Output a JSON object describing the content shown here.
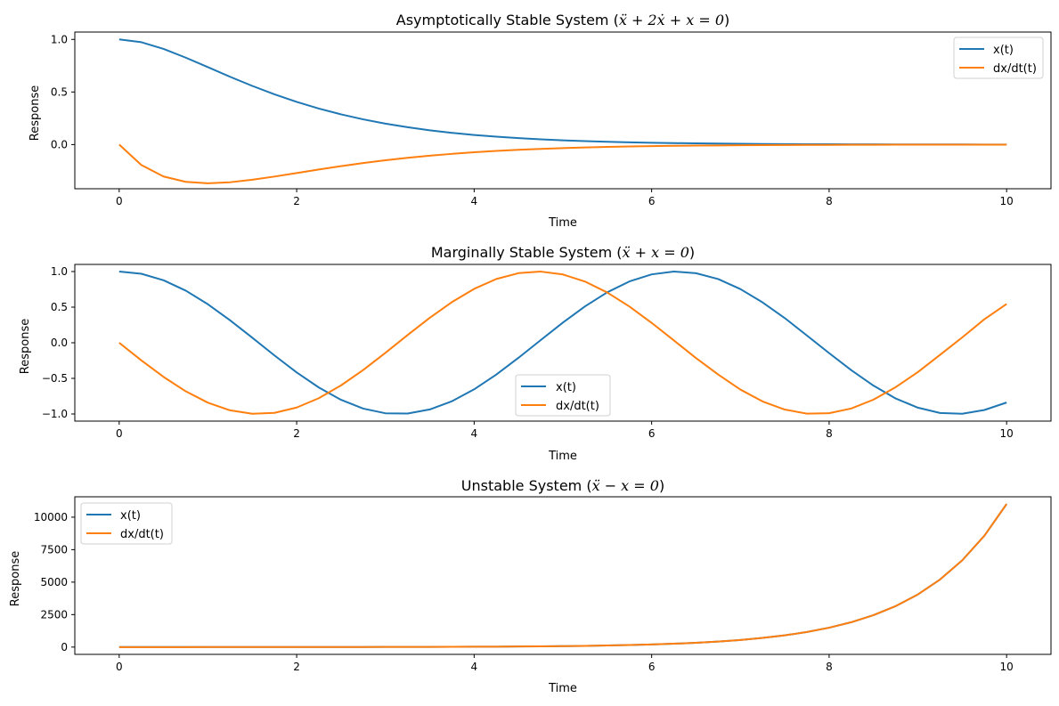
{
  "colors": {
    "series_1": "#1f77b4",
    "series_2": "#ff7f0e",
    "axis": "#000000"
  },
  "chart_data": [
    {
      "type": "line",
      "title_prefix": "Asymptotically Stable System (",
      "title_math": "ẍ + 2ẋ + x = 0",
      "title_suffix": ")",
      "xlabel": "Time",
      "ylabel": "Response",
      "xlim": [
        -0.5,
        10.5
      ],
      "ylim": [
        -0.42,
        1.07
      ],
      "xticks": [
        0,
        2,
        4,
        6,
        8,
        10
      ],
      "xtick_labels": [
        "0",
        "2",
        "4",
        "6",
        "8",
        "10"
      ],
      "yticks": [
        -0.0,
        0.5,
        1.0
      ],
      "ytick_labels": [
        "0.0",
        "0.5",
        "1.0"
      ],
      "legend_position": "upper right",
      "x": [
        0.0,
        0.25,
        0.5,
        0.75,
        1.0,
        1.25,
        1.5,
        1.75,
        2.0,
        2.25,
        2.5,
        2.75,
        3.0,
        3.25,
        3.5,
        3.75,
        4.0,
        4.25,
        4.5,
        4.75,
        5.0,
        5.25,
        5.5,
        5.75,
        6.0,
        6.25,
        6.5,
        6.75,
        7.0,
        7.25,
        7.5,
        7.75,
        8.0,
        8.25,
        8.5,
        8.75,
        9.0,
        9.25,
        9.5,
        9.75,
        10.0
      ],
      "series": [
        {
          "name": "x(t)",
          "color": "#1f77b4",
          "values": [
            1.0,
            0.9735,
            0.9098,
            0.8266,
            0.7358,
            0.6446,
            0.5578,
            0.4779,
            0.406,
            0.3425,
            0.2873,
            0.2397,
            0.1991,
            0.1648,
            0.1359,
            0.1117,
            0.0916,
            0.0749,
            0.0611,
            0.0498,
            0.0404,
            0.0328,
            0.0266,
            0.0215,
            0.0174,
            0.014,
            0.0113,
            0.0091,
            0.0073,
            0.0059,
            0.0047,
            0.0038,
            0.003,
            0.0024,
            0.002,
            0.0016,
            0.0012,
            0.001,
            0.0008,
            0.0006,
            0.0005
          ]
        },
        {
          "name": "dx/dt(t)",
          "color": "#ff7f0e",
          "values": [
            0.0,
            -0.1947,
            -0.3033,
            -0.3543,
            -0.3679,
            -0.3581,
            -0.3347,
            -0.3041,
            -0.2707,
            -0.2371,
            -0.2052,
            -0.1756,
            -0.1494,
            -0.126,
            -0.1057,
            -0.0882,
            -0.0733,
            -0.0607,
            -0.05,
            -0.0411,
            -0.0337,
            -0.0276,
            -0.0225,
            -0.0183,
            -0.0149,
            -0.012,
            -0.0098,
            -0.0079,
            -0.0064,
            -0.0051,
            -0.0041,
            -0.0033,
            -0.0027,
            -0.0022,
            -0.0017,
            -0.0014,
            -0.0011,
            -0.0009,
            -0.0007,
            -0.0006,
            -0.0005
          ]
        }
      ]
    },
    {
      "type": "line",
      "title_prefix": "Marginally Stable System (",
      "title_math": "ẍ + x = 0",
      "title_suffix": ")",
      "xlabel": "Time",
      "ylabel": "Response",
      "xlim": [
        -0.5,
        10.5
      ],
      "ylim": [
        -1.1,
        1.1
      ],
      "xticks": [
        0,
        2,
        4,
        6,
        8,
        10
      ],
      "xtick_labels": [
        "0",
        "2",
        "4",
        "6",
        "8",
        "10"
      ],
      "yticks": [
        -1.0,
        -0.5,
        0.0,
        0.5,
        1.0
      ],
      "ytick_labels": [
        "−1.0",
        "−0.5",
        "0.0",
        "0.5",
        "1.0"
      ],
      "legend_position": "lower center",
      "x": [
        0.0,
        0.25,
        0.5,
        0.75,
        1.0,
        1.25,
        1.5,
        1.75,
        2.0,
        2.25,
        2.5,
        2.75,
        3.0,
        3.25,
        3.5,
        3.75,
        4.0,
        4.25,
        4.5,
        4.75,
        5.0,
        5.25,
        5.5,
        5.75,
        6.0,
        6.25,
        6.5,
        6.75,
        7.0,
        7.25,
        7.5,
        7.75,
        8.0,
        8.25,
        8.5,
        8.75,
        9.0,
        9.25,
        9.5,
        9.75,
        10.0
      ],
      "series": [
        {
          "name": "x(t)",
          "color": "#1f77b4",
          "values": [
            1.0,
            0.9689,
            0.8776,
            0.7317,
            0.5403,
            0.3153,
            0.0707,
            -0.1782,
            -0.4161,
            -0.6282,
            -0.8011,
            -0.9243,
            -0.99,
            -0.9941,
            -0.9365,
            -0.8206,
            -0.6536,
            -0.446,
            -0.2108,
            0.0376,
            0.2837,
            0.5117,
            0.7087,
            0.8612,
            0.9602,
            0.9998,
            0.9766,
            0.8949,
            0.7539,
            0.5668,
            0.3466,
            0.1016,
            -0.1455,
            -0.3853,
            -0.602,
            -0.7822,
            -0.9111,
            -0.9856,
            -0.9972,
            -0.9438,
            -0.8391
          ]
        },
        {
          "name": "dx/dt(t)",
          "color": "#ff7f0e",
          "values": [
            0.0,
            -0.2474,
            -0.4794,
            -0.6816,
            -0.8415,
            -0.949,
            -0.9975,
            -0.984,
            -0.9093,
            -0.7781,
            -0.5985,
            -0.3817,
            -0.1411,
            0.1082,
            0.3508,
            0.5716,
            0.7568,
            0.8952,
            0.9775,
            0.9993,
            0.9589,
            0.8591,
            0.7055,
            0.5083,
            0.2794,
            0.0332,
            -0.2151,
            -0.4461,
            -0.657,
            -0.8239,
            -0.938,
            -0.9948,
            -0.9894,
            -0.9228,
            -0.7985,
            -0.6231,
            -0.4121,
            -0.1691,
            0.0752,
            0.3305,
            0.544
          ]
        }
      ]
    },
    {
      "type": "line",
      "title_prefix": "Unstable System (",
      "title_math": "ẍ − x = 0",
      "title_suffix": ")",
      "xlabel": "Time",
      "ylabel": "Response",
      "xlim": [
        -0.5,
        10.5
      ],
      "ylim": [
        -560,
        11570
      ],
      "xticks": [
        0,
        2,
        4,
        6,
        8,
        10
      ],
      "xtick_labels": [
        "0",
        "2",
        "4",
        "6",
        "8",
        "10"
      ],
      "yticks": [
        0,
        2500,
        5000,
        7500,
        10000
      ],
      "ytick_labels": [
        "0",
        "2500",
        "5000",
        "7500",
        "10000"
      ],
      "legend_position": "upper left",
      "x": [
        0.0,
        0.25,
        0.5,
        0.75,
        1.0,
        1.25,
        1.5,
        1.75,
        2.0,
        2.25,
        2.5,
        2.75,
        3.0,
        3.25,
        3.5,
        3.75,
        4.0,
        4.25,
        4.5,
        4.75,
        5.0,
        5.25,
        5.5,
        5.75,
        6.0,
        6.25,
        6.5,
        6.75,
        7.0,
        7.25,
        7.5,
        7.75,
        8.0,
        8.25,
        8.5,
        8.75,
        9.0,
        9.25,
        9.5,
        9.75,
        10.0
      ],
      "series": [
        {
          "name": "x(t)",
          "color": "#1f77b4",
          "values": [
            1.0,
            1.03,
            1.13,
            1.29,
            1.54,
            1.89,
            2.35,
            2.96,
            3.76,
            4.8,
            6.13,
            7.85,
            10.07,
            12.92,
            16.57,
            21.27,
            27.31,
            35.07,
            45.01,
            57.8,
            74.21,
            95.28,
            122.34,
            157.08,
            201.72,
            259.0,
            332.57,
            427.02,
            548.32,
            704.06,
            904.02,
            1160.8,
            1490.48,
            1913.79,
            2457.38,
            3155.3,
            4051.54,
            5202.25,
            6679.86,
            8577.08,
            11013.23
          ]
        },
        {
          "name": "dx/dt(t)",
          "color": "#ff7f0e",
          "values": [
            0.0,
            0.25,
            0.52,
            0.82,
            1.18,
            1.6,
            2.13,
            2.79,
            3.63,
            4.69,
            6.05,
            7.79,
            10.02,
            12.88,
            16.54,
            21.25,
            27.29,
            35.05,
            45.0,
            57.79,
            74.2,
            95.27,
            122.34,
            157.08,
            201.71,
            259.0,
            332.57,
            427.02,
            548.32,
            704.06,
            904.02,
            1160.8,
            1490.48,
            1913.79,
            2457.38,
            3155.3,
            4051.54,
            5202.25,
            6679.86,
            8577.08,
            11013.23
          ]
        }
      ]
    }
  ]
}
